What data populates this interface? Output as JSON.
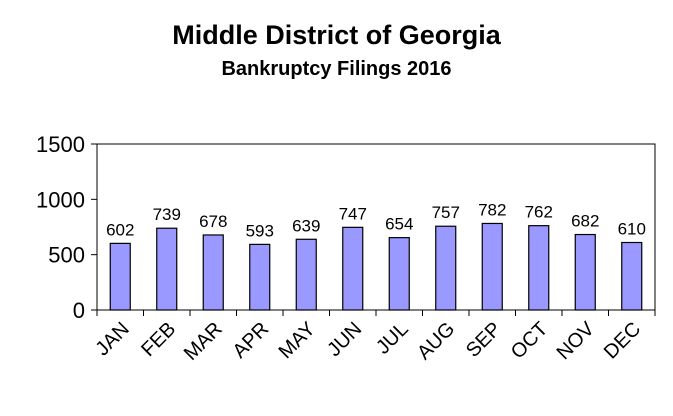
{
  "chart_data": {
    "type": "bar",
    "title": "Middle District of Georgia",
    "subtitle": "Bankruptcy  Filings 2016",
    "xlabel": "",
    "ylabel": "",
    "categories": [
      "JAN",
      "FEB",
      "MAR",
      "APR",
      "MAY",
      "JUN",
      "JUL",
      "AUG",
      "SEP",
      "OCT",
      "NOV",
      "DEC"
    ],
    "values": [
      602,
      739,
      678,
      593,
      639,
      747,
      654,
      757,
      782,
      762,
      682,
      610
    ],
    "ylim": [
      0,
      1500
    ],
    "yticks": [
      "0",
      "500",
      "1000",
      "1500"
    ],
    "grid": false,
    "legend": "none",
    "bar_color": "#9999ff",
    "bar_edge_color": "#000000"
  }
}
